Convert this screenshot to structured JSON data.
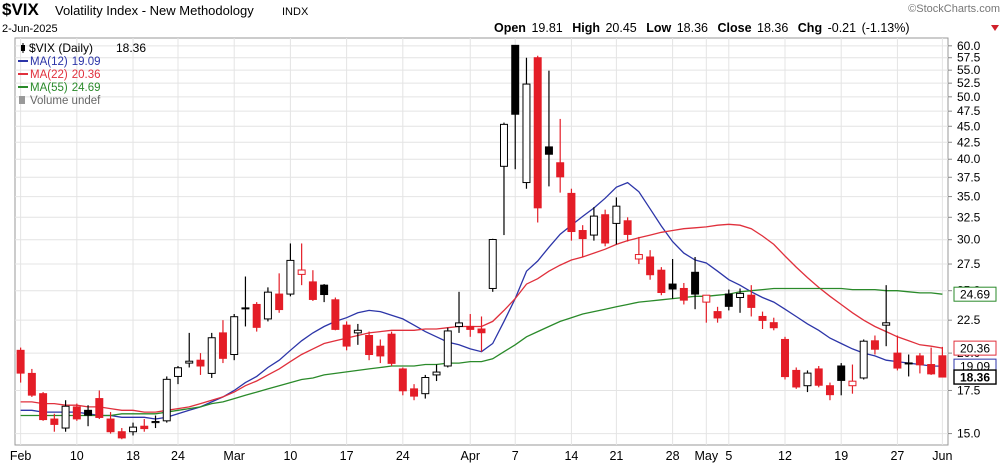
{
  "chart_data": {
    "type": "candlestick",
    "symbol": "$VIX",
    "name": "Volatility Index - New Methodology",
    "exchange": "INDX",
    "date": "2-Jun-2025",
    "source": "©StockCharts.com",
    "quote_labels": [
      "Open",
      "High",
      "Low",
      "Close",
      "Chg"
    ],
    "change": -0.21,
    "change_pct": "(-1.13%)",
    "volume_legend": "Volume undef",
    "log_scale": true,
    "grid": true,
    "ylim": [
      14.4,
      61.7
    ],
    "yticks": [
      {
        "value": 15,
        "label": "15.0"
      },
      {
        "value": 17.5,
        "label": "17.5"
      },
      {
        "value": 20,
        "label": "20.0"
      },
      {
        "value": 22.5,
        "label": "22.5"
      },
      {
        "value": 25,
        "label": "25.0"
      },
      {
        "value": 27.5,
        "label": "27.5"
      },
      {
        "value": 30,
        "label": "30.0"
      },
      {
        "value": 32.5,
        "label": "32.5"
      },
      {
        "value": 35,
        "label": "35.0"
      },
      {
        "value": 37.5,
        "label": "37.5"
      },
      {
        "value": 40,
        "label": "40.0"
      },
      {
        "value": 42.5,
        "label": "42.5"
      },
      {
        "value": 45,
        "label": "45.0"
      },
      {
        "value": 47.5,
        "label": "47.5"
      },
      {
        "value": 50,
        "label": "50.0"
      },
      {
        "value": 52.5,
        "label": "52.5"
      },
      {
        "value": 55,
        "label": "55.0"
      },
      {
        "value": 57.5,
        "label": "57.5"
      },
      {
        "value": 60,
        "label": "60.0"
      }
    ],
    "categories": [
      "Feb",
      null,
      null,
      null,
      null,
      "10",
      null,
      null,
      null,
      null,
      "18",
      null,
      null,
      null,
      "24",
      null,
      null,
      null,
      null,
      "Mar",
      null,
      null,
      null,
      null,
      "10",
      null,
      null,
      null,
      null,
      "17",
      null,
      null,
      null,
      null,
      "24",
      null,
      null,
      null,
      null,
      null,
      "Apr",
      null,
      null,
      null,
      "7",
      null,
      null,
      null,
      null,
      "14",
      null,
      null,
      null,
      "21",
      null,
      null,
      null,
      null,
      "28",
      null,
      null,
      "May",
      null,
      "5",
      null,
      null,
      null,
      null,
      "12",
      null,
      null,
      null,
      null,
      "19",
      null,
      null,
      null,
      null,
      "27",
      null,
      null,
      null,
      "Jun"
    ],
    "ohlc": {
      "name": "$VIX (Daily)",
      "up_color": "#000000",
      "down_color": "#e41d27",
      "open": [
        20.2,
        18.6,
        17.3,
        15.8,
        15.3,
        16.5,
        16.3,
        17.0,
        15.8,
        15.1,
        15.1,
        15.4,
        15.6,
        15.7,
        18.4,
        19.3,
        19.5,
        18.6,
        21.5,
        19.9,
        23.5,
        23.8,
        22.6,
        24.7,
        24.7,
        26.5,
        25.8,
        25.5,
        24.2,
        22.1,
        21.5,
        21.3,
        20.5,
        21.4,
        18.9,
        17.6,
        17.3,
        18.5,
        19.1,
        22.0,
        22.0,
        21.8,
        25.2,
        39.0,
        60.1,
        36.8,
        57.5,
        41.8,
        39.5,
        35.4,
        31.0,
        30.5,
        32.8,
        31.8,
        32.1,
        28.0,
        28.2,
        26.9,
        25.6,
        25.2,
        26.7,
        24.0,
        23.2,
        24.7,
        24.4,
        24.6,
        22.8,
        22.3,
        21.0,
        18.8,
        17.8,
        18.9,
        17.8,
        19.1,
        17.8,
        18.3,
        20.9,
        22.1,
        20.0,
        19.3,
        19.8,
        19.2,
        19.81
      ],
      "high": [
        20.4,
        18.9,
        17.4,
        16.1,
        16.9,
        16.7,
        16.6,
        17.5,
        16.2,
        15.3,
        15.6,
        15.8,
        16.0,
        18.4,
        19.1,
        21.5,
        20.0,
        21.5,
        22.5,
        23.0,
        26.3,
        24.0,
        25.3,
        26.6,
        29.6,
        29.6,
        26.9,
        25.6,
        24.4,
        22.4,
        22.2,
        21.6,
        21.0,
        21.6,
        19.0,
        17.9,
        18.5,
        19.2,
        21.9,
        24.9,
        23.0,
        22.8,
        30.1,
        45.6,
        60.1,
        57.5,
        57.9,
        54.9,
        46.2,
        36.0,
        31.6,
        33.7,
        33.4,
        34.9,
        32.5,
        30.3,
        28.9,
        27.2,
        28.0,
        25.7,
        28.2,
        24.6,
        23.6,
        25.1,
        25.2,
        25.5,
        23.2,
        22.7,
        21.2,
        19.0,
        18.8,
        19.1,
        18.0,
        19.3,
        19.2,
        21.0,
        21.3,
        25.5,
        21.3,
        19.9,
        20.0,
        20.4,
        20.45
      ],
      "low": [
        18.0,
        17.1,
        15.7,
        15.1,
        15.1,
        15.7,
        15.4,
        15.8,
        15.0,
        14.7,
        14.9,
        15.1,
        15.3,
        15.6,
        17.9,
        19.0,
        18.5,
        18.3,
        19.3,
        19.5,
        22.0,
        21.6,
        22.4,
        23.1,
        24.5,
        25.5,
        24.1,
        24.0,
        21.7,
        20.2,
        20.6,
        19.5,
        19.3,
        19.1,
        17.2,
        16.9,
        17.0,
        18.1,
        19.0,
        21.5,
        21.2,
        20.1,
        24.9,
        30.5,
        38.6,
        36.0,
        31.9,
        36.3,
        35.5,
        29.9,
        28.2,
        29.9,
        29.3,
        29.5,
        29.8,
        27.5,
        26.0,
        24.6,
        24.3,
        23.8,
        23.4,
        22.3,
        22.3,
        23.3,
        23.1,
        22.8,
        21.8,
        21.7,
        18.2,
        17.6,
        17.4,
        17.7,
        16.9,
        17.2,
        17.3,
        18.2,
        19.9,
        20.5,
        18.8,
        18.4,
        18.6,
        18.5,
        18.36
      ],
      "close": [
        18.62,
        17.21,
        15.77,
        15.5,
        16.54,
        15.81,
        16.02,
        15.89,
        15.1,
        14.77,
        15.35,
        15.27,
        15.66,
        18.21,
        18.98,
        19.43,
        19.1,
        21.13,
        19.63,
        22.78,
        23.51,
        21.93,
        24.87,
        23.37,
        27.86,
        26.92,
        24.23,
        24.66,
        21.77,
        20.51,
        21.7,
        19.9,
        19.8,
        19.28,
        17.48,
        17.15,
        18.33,
        18.69,
        21.65,
        22.28,
        21.77,
        21.51,
        30.02,
        45.31,
        46.98,
        52.33,
        33.62,
        40.72,
        37.56,
        30.89,
        30.12,
        32.64,
        29.65,
        33.82,
        30.57,
        28.45,
        26.47,
        24.84,
        25.15,
        24.17,
        24.7,
        24.6,
        22.68,
        23.64,
        24.76,
        23.55,
        22.48,
        21.9,
        18.39,
        17.72,
        18.62,
        17.83,
        17.24,
        18.14,
        18.09,
        20.87,
        20.28,
        22.29,
        18.96,
        19.31,
        19.18,
        18.57,
        18.36
      ]
    },
    "series": [
      {
        "name": "MA(12)",
        "color": "#2c35a8",
        "values": [
          16.3,
          16.3,
          16.2,
          16.2,
          16.2,
          16.2,
          16.1,
          16.0,
          16.0,
          15.9,
          15.9,
          15.9,
          15.8,
          15.9,
          16.1,
          16.3,
          16.5,
          16.8,
          17.1,
          17.5,
          18.0,
          18.4,
          19.0,
          19.5,
          20.2,
          20.9,
          21.5,
          22.0,
          22.4,
          22.7,
          23.1,
          23.3,
          23.2,
          22.9,
          22.6,
          22.1,
          21.6,
          21.2,
          20.8,
          20.6,
          20.3,
          20.1,
          20.7,
          22.4,
          24.3,
          26.8,
          27.8,
          29.2,
          30.6,
          31.6,
          32.6,
          33.6,
          34.8,
          36.2,
          36.8,
          35.6,
          33.5,
          31.5,
          29.8,
          28.6,
          27.9,
          27.6,
          26.8,
          26.0,
          25.5,
          24.9,
          24.4,
          24.0,
          23.4,
          22.8,
          22.2,
          21.7,
          21.1,
          20.7,
          20.3,
          20.0,
          19.8,
          19.5,
          19.4,
          19.3,
          19.2,
          19.1,
          19.09
        ]
      },
      {
        "name": "MA(22)",
        "color": "#e0303c",
        "values": [
          16.8,
          16.8,
          16.7,
          16.7,
          16.6,
          16.6,
          16.5,
          16.5,
          16.4,
          16.3,
          16.3,
          16.2,
          16.2,
          16.3,
          16.4,
          16.5,
          16.7,
          16.9,
          17.1,
          17.4,
          17.8,
          18.1,
          18.5,
          18.9,
          19.4,
          19.9,
          20.3,
          20.7,
          20.9,
          21.1,
          21.3,
          21.5,
          21.6,
          21.7,
          21.7,
          21.7,
          21.8,
          21.8,
          21.9,
          22.0,
          22.0,
          22.0,
          22.4,
          23.3,
          24.3,
          25.6,
          26.1,
          26.8,
          27.4,
          27.9,
          28.2,
          28.6,
          29.0,
          29.5,
          29.9,
          30.2,
          30.5,
          30.8,
          31.0,
          31.2,
          31.3,
          31.4,
          31.6,
          31.7,
          31.6,
          31.2,
          30.4,
          29.5,
          28.3,
          27.2,
          26.2,
          25.3,
          24.5,
          23.8,
          23.1,
          22.5,
          22.0,
          21.6,
          21.2,
          20.9,
          20.6,
          20.5,
          20.36
        ]
      },
      {
        "name": "MA(55)",
        "color": "#2a8a2a",
        "values": [
          16.0,
          16.0,
          16.0,
          16.0,
          16.0,
          16.0,
          16.0,
          16.0,
          16.0,
          16.1,
          16.1,
          16.1,
          16.1,
          16.2,
          16.3,
          16.4,
          16.5,
          16.7,
          16.8,
          17.0,
          17.2,
          17.4,
          17.6,
          17.8,
          18.0,
          18.2,
          18.3,
          18.5,
          18.6,
          18.7,
          18.8,
          18.9,
          19.0,
          19.1,
          19.1,
          19.1,
          19.2,
          19.2,
          19.3,
          19.3,
          19.4,
          19.4,
          19.6,
          20.1,
          20.6,
          21.2,
          21.6,
          22.0,
          22.4,
          22.7,
          23.0,
          23.2,
          23.4,
          23.6,
          23.8,
          24.0,
          24.1,
          24.2,
          24.3,
          24.4,
          24.5,
          24.5,
          24.6,
          24.7,
          24.9,
          25.0,
          25.1,
          25.2,
          25.2,
          25.2,
          25.2,
          25.2,
          25.2,
          25.2,
          25.1,
          25.1,
          25.1,
          25.0,
          25.0,
          24.9,
          24.8,
          24.8,
          24.69
        ]
      }
    ]
  }
}
